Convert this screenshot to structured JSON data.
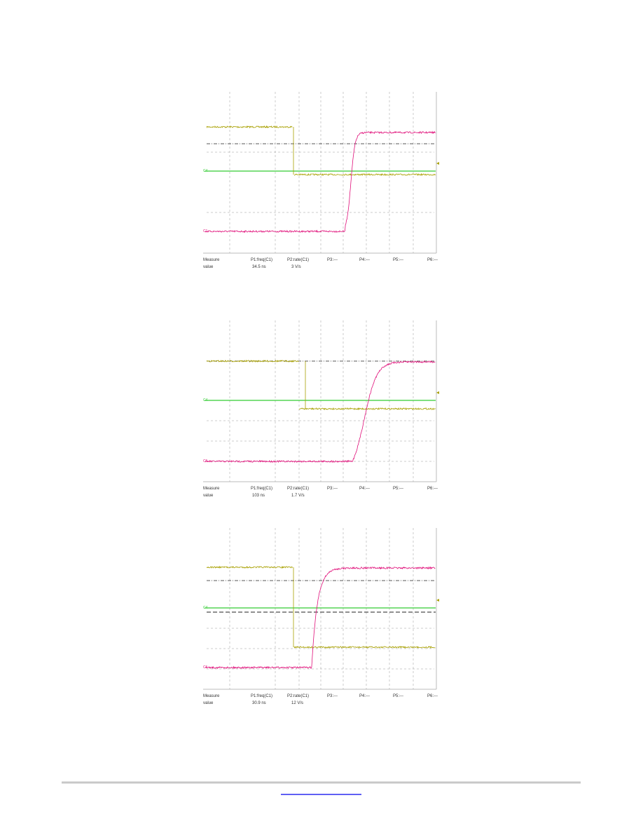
{
  "scopes": [
    {
      "channels": [
        "C4",
        "C1"
      ],
      "measure": {
        "labels": [
          "Measure",
          "P1:freq(C1)",
          "P2:rate(C1)",
          "P3:---",
          "P4:---",
          "P5:---",
          "P6:---"
        ],
        "values": [
          "value",
          "34.5 ns",
          "3 V/s"
        ]
      }
    },
    {
      "channels": [
        "C4",
        "C1"
      ],
      "measure": {
        "labels": [
          "Measure",
          "P1:freq(C1)",
          "P2:rate(C1)",
          "P3:---",
          "P4:---",
          "P5:---",
          "P6:---"
        ],
        "values": [
          "value",
          "103 ns",
          "1.7 V/s"
        ]
      }
    },
    {
      "channels": [
        "C4",
        "C1"
      ],
      "measure": {
        "labels": [
          "Measure",
          "P1:freq(C1)",
          "P2:rate(C1)",
          "P3:---",
          "P4:---",
          "P5:---",
          "P6:---"
        ],
        "values": [
          "value",
          "30.9 ns",
          "12 V/s"
        ]
      }
    }
  ]
}
